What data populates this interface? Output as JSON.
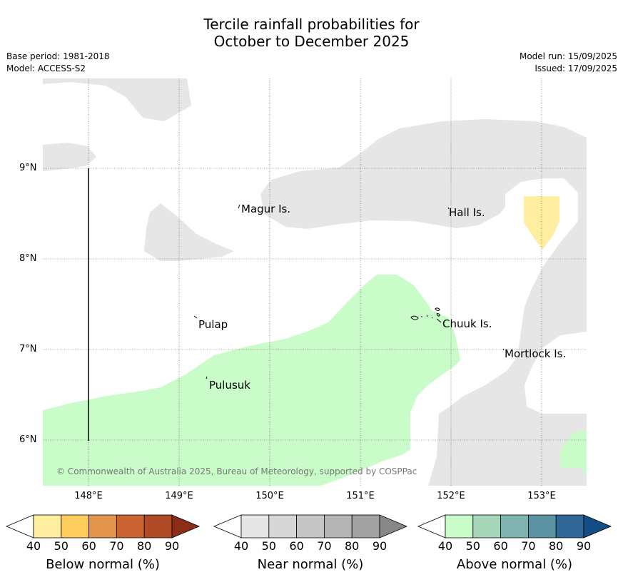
{
  "title_line1": "Tercile rainfall probabilities for",
  "title_line2": "October to December 2025",
  "meta_left": {
    "base_period": "Base period: 1981-2018",
    "model": "Model: ACCESS-S2"
  },
  "meta_right": {
    "model_run": "Model run: 15/09/2025",
    "issued": "Issued: 17/09/2025"
  },
  "axes": {
    "x_labels": [
      "148°E",
      "149°E",
      "150°E",
      "151°E",
      "152°E",
      "153°E"
    ],
    "y_labels": [
      "9°N",
      "8°N",
      "7°N",
      "6°N"
    ]
  },
  "places": [
    "Magur Is.",
    "Hall Is.",
    "Pulap",
    "Chuuk Is.",
    "Mortlock Is.",
    "Pulusuk"
  ],
  "copyright": "© Commonwealth of Australia 2025, Bureau of Meteorology, supported by COSPPac",
  "colorbars": [
    {
      "label": "Below normal (%)",
      "ticks": [
        "40",
        "50",
        "60",
        "70",
        "80",
        "90"
      ],
      "colors": [
        "#ffffff",
        "#ffeda0",
        "#fecc5c",
        "#e2954a",
        "#cc6333",
        "#b04a26",
        "#8c2d18"
      ]
    },
    {
      "label": "Near normal (%)",
      "ticks": [
        "40",
        "50",
        "60",
        "70",
        "80",
        "90"
      ],
      "colors": [
        "#ffffff",
        "#e6e6e6",
        "#d6d6d6",
        "#c6c6c6",
        "#b4b4b4",
        "#a2a2a2",
        "#878787"
      ]
    },
    {
      "label": "Above normal (%)",
      "ticks": [
        "40",
        "50",
        "60",
        "70",
        "80",
        "90"
      ],
      "colors": [
        "#ffffff",
        "#c9fcc9",
        "#a5d6b7",
        "#7fb3b0",
        "#5b93a3",
        "#306698",
        "#124d86"
      ]
    }
  ],
  "map_colors": {
    "near_normal": "#e6e6e6",
    "above_normal": "#c9fcc9",
    "below_normal": "#ffeda0",
    "grid": "#555555"
  }
}
